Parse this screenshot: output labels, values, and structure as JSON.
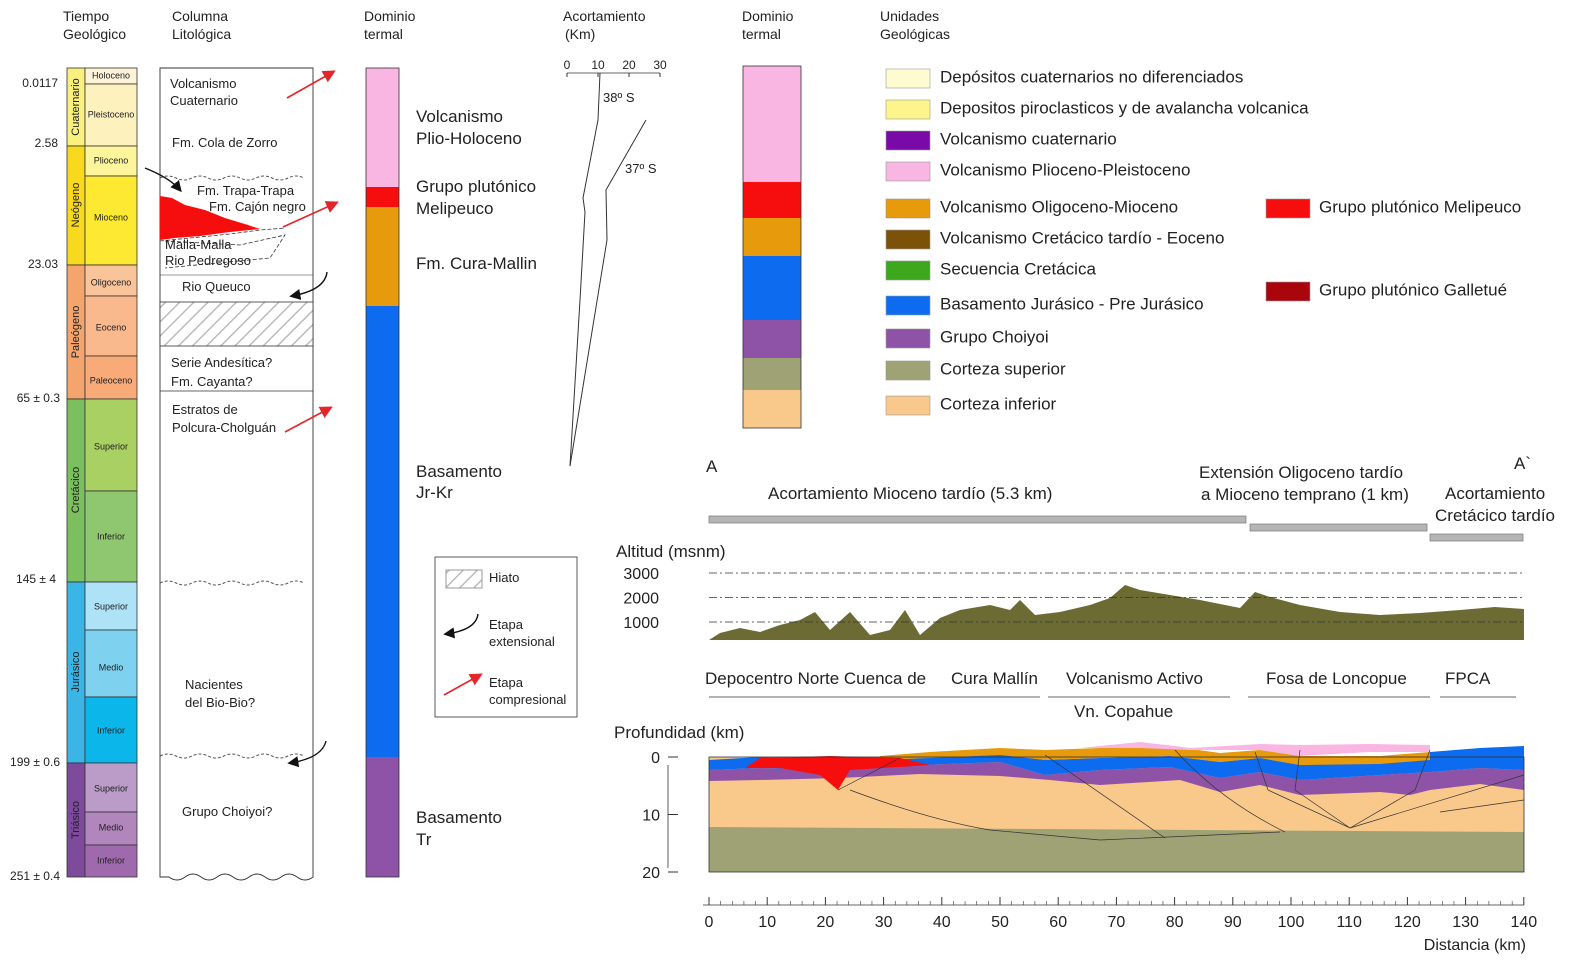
{
  "time_column": {
    "header": [
      "Tiempo",
      "Geológico"
    ],
    "ages": [
      "0.0117",
      "2.58",
      "23.03",
      "65 ± 0.3",
      "145 ± 4",
      "199 ± 0.6",
      "251 ± 0.4"
    ],
    "periods": [
      "Cuaternario",
      "Neógeno",
      "Paleógeno",
      "Cretácico",
      "Jurásico",
      "Triásico"
    ],
    "epochs": [
      "Holoceno",
      "Pleistoceno",
      "Plioceno",
      "Mioceno",
      "Oligoceno",
      "Eoceno",
      "Paleoceno",
      "Superior",
      "Inferior",
      "Superior",
      "Medio",
      "Inferior",
      "Superior",
      "Medio",
      "Inferior"
    ]
  },
  "litho_column": {
    "header": [
      "Columna",
      "Litológica"
    ],
    "units": [
      [
        "Volcanismo",
        "Cuaternario"
      ],
      [
        "Fm. Cola de Zorro"
      ],
      [
        "Fm. Trapa-Trapa"
      ],
      [
        "Fm. Cajón negro"
      ],
      [
        "Malla-Malla"
      ],
      [
        "Rio Pedregoso"
      ],
      [
        "Rio Queuco"
      ],
      [
        "Serie Andesítica?"
      ],
      [
        "Fm. Cayanta?"
      ],
      [
        "Estratos de",
        "Polcura-Cholguán"
      ],
      [
        "Nacientes",
        "del Bio-Bio?"
      ],
      [
        "Grupo Choiyoi?"
      ]
    ]
  },
  "thermal_domain": {
    "header": [
      "Dominio",
      "termal"
    ],
    "domains": [
      [
        "Volcanismo",
        "Plio-Holoceno"
      ],
      [
        "Grupo plutónico",
        "Melipeuco"
      ],
      [
        "Fm. Cura-Mallin"
      ],
      [
        "Basamento",
        "Jr-Kr"
      ],
      [
        "Basamento",
        "Tr"
      ]
    ]
  },
  "shortening": {
    "header": [
      "Acortamiento",
      "(Km)"
    ],
    "ticks": [
      0,
      10,
      20,
      30
    ],
    "labels": [
      "38º S",
      "37º S"
    ]
  },
  "legend_box": [
    [
      "Hiato"
    ],
    [
      "Etapa",
      "extensional"
    ],
    [
      "Etapa",
      "compresional"
    ]
  ],
  "thermal_domain_2": {
    "header": [
      "Dominio",
      "termal"
    ]
  },
  "units": {
    "header": [
      "Unidades",
      "Geológicas"
    ],
    "items": [
      {
        "label": "Depósitos cuaternarios no diferenciados",
        "color": "#fffbd0"
      },
      {
        "label": "Depositos piroclasticos y de avalancha volcanica",
        "color": "#fdf58c"
      },
      {
        "label": "Volcanismo cuaternario",
        "color": "#7a0aa8"
      },
      {
        "label": "Volcanismo Plioceno-Pleistoceno",
        "color": "#f9b6e3"
      },
      {
        "label": "Volcanismo Oligoceno-Mioceno",
        "color": "#e69a0c"
      },
      {
        "label": "Volcanismo Cretácico tardío - Eoceno",
        "color": "#7a5209"
      },
      {
        "label": "Secuencia Cretácica",
        "color": "#3ea81d"
      },
      {
        "label": "Basamento Jurásico - Pre Jurásico",
        "color": "#0d6bf0"
      },
      {
        "label": "Grupo Choiyoi",
        "color": "#8e53a6"
      },
      {
        "label": "Corteza superior",
        "color": "#9ea274"
      },
      {
        "label": "Corteza inferior",
        "color": "#f9c88b"
      },
      {
        "label": "Grupo plutónico Melipeuco",
        "color": "#f60e0e"
      },
      {
        "label": "Grupo plutónico Galletué",
        "color": "#a8060c"
      }
    ]
  },
  "section": {
    "start": "A",
    "end": "A`",
    "phases": [
      [
        "Acortamiento Mioceno tardío (5.3 km)"
      ],
      [
        "Extensión Oligoceno tardío",
        "a Mioceno temprano (1 km)"
      ],
      [
        "Acortamiento",
        "Cretácico tardío"
      ]
    ],
    "altitude_label": "Altitud (msnm)",
    "altitude_ticks": [
      3000,
      2000,
      1000
    ],
    "regions": [
      "Depocentro Norte Cuenca de",
      "Cura Mallín",
      "Volcanismo Activo",
      "Vn. Copahue",
      "Fosa de Loncopue",
      "FPCA"
    ],
    "depth_label": "Profundidad (km)",
    "depth_ticks": [
      0,
      10,
      20
    ],
    "distance_ticks": [
      0,
      10,
      20,
      30,
      40,
      50,
      60,
      70,
      80,
      90,
      100,
      110,
      120,
      130,
      140
    ],
    "distance_label": "Distancia (km)"
  }
}
